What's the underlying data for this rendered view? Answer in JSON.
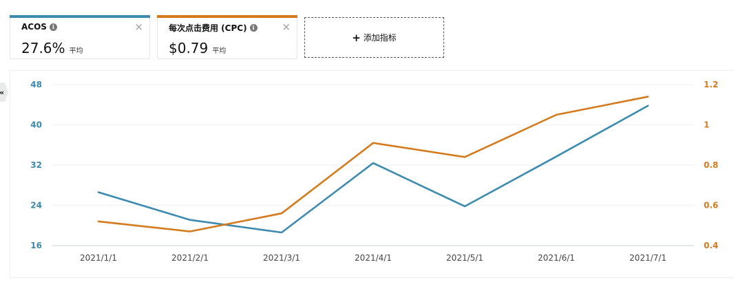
{
  "metrics": [
    {
      "name": "ACOS",
      "value": "27.6%",
      "avg_label": "平均",
      "color": "#3a8ab1",
      "close": "×"
    },
    {
      "name": "每次点击费用 (CPC)",
      "value": "$0.79",
      "avg_label": "平均",
      "color": "#d47a1c",
      "close": "×"
    }
  ],
  "add_metric": {
    "plus": "+",
    "label": "添加指标"
  },
  "collapse_icon": "«",
  "chart_data": {
    "type": "line",
    "categories": [
      "2021/1/1",
      "2021/2/1",
      "2021/3/1",
      "2021/4/1",
      "2021/5/1",
      "2021/6/1",
      "2021/7/1"
    ],
    "series": [
      {
        "name": "ACOS",
        "axis": "left",
        "color": "#3a8ab1",
        "values": [
          26.6,
          21.1,
          18.6,
          32.4,
          23.8,
          33.7,
          43.8
        ]
      },
      {
        "name": "每次点击费用 (CPC)",
        "axis": "right",
        "color": "#d47a1c",
        "values": [
          0.52,
          0.47,
          0.56,
          0.91,
          0.84,
          1.05,
          1.14
        ]
      }
    ],
    "y_left": {
      "min": 16,
      "max": 48,
      "ticks": [
        16,
        24,
        32,
        40,
        48
      ],
      "color": "#3a8ab1"
    },
    "y_right": {
      "min": 0.4,
      "max": 1.2,
      "ticks": [
        "0.4",
        "0.6",
        "0.8",
        "1",
        "1.2"
      ],
      "color": "#d47a1c"
    },
    "grid": true,
    "legend": "none"
  }
}
